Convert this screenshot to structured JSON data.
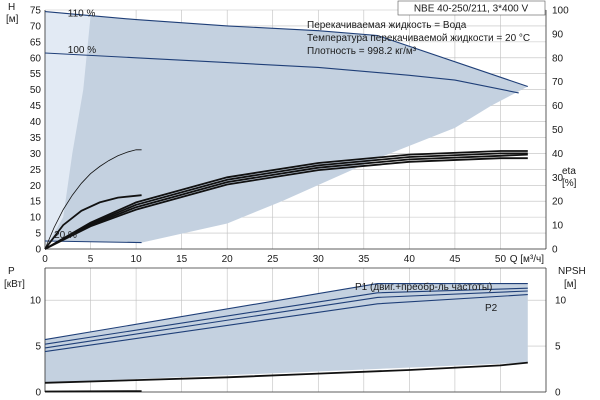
{
  "chart_data": [
    {
      "type": "line",
      "title": "NBE 40-250/211, 3*400 V",
      "annotations": [
        "Перекачиваемая жидкость = Вода",
        "Температура перекачиваемой жидкости = 20 °C",
        "Плотность = 998.2 кг/м³"
      ],
      "xlabel": "Q [м³/ч]",
      "ylabel_left": "H [м]",
      "ylabel_right": "eta [%]",
      "xlim": [
        0,
        55
      ],
      "ylim_left": [
        0,
        75
      ],
      "ylim_right": [
        0,
        100
      ],
      "x_ticks": [
        0,
        5,
        10,
        15,
        20,
        25,
        30,
        35,
        40,
        45,
        50
      ],
      "y_ticks_left": [
        0,
        5,
        10,
        15,
        20,
        25,
        30,
        35,
        40,
        45,
        50,
        55,
        60,
        65,
        70,
        75
      ],
      "y_ticks_right": [
        0,
        10,
        20,
        30,
        40,
        50,
        60,
        70,
        80,
        90,
        100
      ],
      "grid": true,
      "speed_labels": [
        "110 %",
        "100 %",
        "20 %"
      ],
      "colors": {
        "curve": "#1f3f78",
        "band": "#c4d1e0",
        "eff": "#111111"
      },
      "series": [
        {
          "name": "110 %",
          "x": [
            0,
            10,
            20,
            30,
            36.5,
            53
          ],
          "y": [
            74.5,
            72,
            70,
            68.5,
            67,
            51
          ]
        },
        {
          "name": "100 %",
          "x": [
            0,
            10,
            20,
            30,
            40,
            45,
            52
          ],
          "y": [
            61.5,
            60,
            58.5,
            57,
            54.5,
            53,
            49
          ]
        },
        {
          "name": "20 %",
          "x": [
            0,
            10.6
          ],
          "y": [
            2.5,
            2
          ]
        },
        {
          "x": [
            0,
            1,
            2,
            3,
            4,
            5,
            6,
            7,
            8,
            9,
            10,
            10.6
          ],
          "y": [
            0,
            9,
            16.5,
            22.5,
            27.5,
            31.5,
            34.5,
            37,
            39,
            40.5,
            41.5,
            41.5
          ]
        },
        {
          "x": [
            0,
            2,
            4,
            6,
            8,
            10.6
          ],
          "y": [
            0,
            10,
            16,
            19.5,
            21.5,
            22.5
          ]
        },
        {
          "x": [
            0,
            5,
            10,
            20,
            30,
            40,
            50,
            53
          ],
          "y": [
            0,
            11,
            19.5,
            30,
            36,
            39.5,
            41,
            41
          ]
        },
        {
          "x": [
            0,
            5,
            10,
            20,
            30,
            40,
            50,
            53
          ],
          "y": [
            0,
            10.5,
            18.5,
            29,
            35,
            38.5,
            40,
            40
          ]
        },
        {
          "x": [
            0,
            5,
            10,
            20,
            30,
            40,
            50,
            53
          ],
          "y": [
            0,
            10,
            17.5,
            28,
            34,
            37.5,
            39,
            39.5
          ]
        },
        {
          "x": [
            0,
            5,
            10,
            20,
            30,
            40,
            50,
            53
          ],
          "y": [
            0,
            9.5,
            16.5,
            27,
            33,
            36.5,
            38,
            38
          ]
        }
      ]
    },
    {
      "type": "line",
      "ylabel_left": "P [кВт]",
      "ylabel_right": "NPSH [м]",
      "xlim": [
        0,
        55
      ],
      "ylim_left": [
        0,
        13.5
      ],
      "ylim_right": [
        0,
        13.5
      ],
      "y_ticks_left": [
        0,
        5,
        10
      ],
      "y_ticks_right": [
        0,
        5,
        10
      ],
      "grid": true,
      "series_labels": [
        "P1 (двиг.+преобр-ль частоты)",
        "P2"
      ],
      "series": [
        {
          "name": "P1 (двиг.+преобр-ль частоты)",
          "x": [
            0,
            36.5,
            53
          ],
          "y": [
            5.7,
            11.8,
            11.8
          ]
        },
        {
          "x": [
            0,
            36.5,
            53
          ],
          "y": [
            5.2,
            10.8,
            11.3
          ]
        },
        {
          "x": [
            0,
            36.5,
            53
          ],
          "y": [
            4.8,
            10.3,
            11.0
          ]
        },
        {
          "name": "P2",
          "x": [
            0,
            36.5,
            53
          ],
          "y": [
            4.4,
            9.6,
            10.6
          ]
        },
        {
          "x": [
            0,
            10,
            20,
            30,
            40,
            50,
            53
          ],
          "y": [
            1.0,
            1.3,
            1.6,
            2.0,
            2.4,
            2.9,
            3.2
          ]
        },
        {
          "x": [
            0,
            10.6
          ],
          "y": [
            0.05,
            0.1
          ]
        }
      ]
    }
  ]
}
